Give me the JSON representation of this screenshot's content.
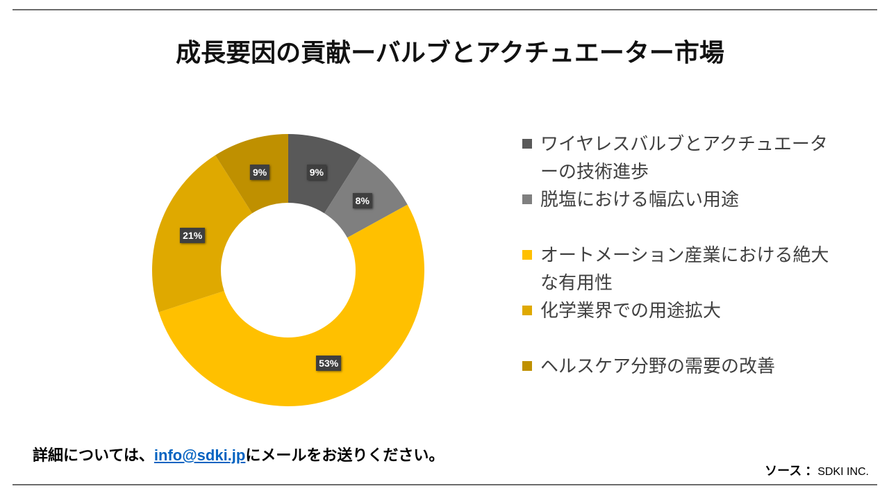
{
  "chart_data": {
    "type": "pie",
    "donut": true,
    "title": "成長要因の貢献ーバルブとアクチュエーター市場",
    "categories": [
      "ワイヤレスバルブとアクチュエーターの技術進歩",
      "脱塩における幅広い用途",
      "オートメーション産業における絶大な有用性",
      "化学業界での用途拡大",
      "ヘルスケア分野の需要の改善"
    ],
    "values": [
      9,
      8,
      53,
      21,
      9
    ],
    "data_labels": [
      "9%",
      "8%",
      "53%",
      "21%",
      "9%"
    ],
    "colors": [
      "#595959",
      "#7F7F7F",
      "#FFC000",
      "#DFA900",
      "#BF9000"
    ],
    "legend": "right"
  },
  "footer": {
    "note_before": "詳細については、",
    "email": "info@sdki.jp",
    "note_after": "にメールをお送りください。",
    "source_label": "ソース ：",
    "source_value": "SDKI INC."
  }
}
